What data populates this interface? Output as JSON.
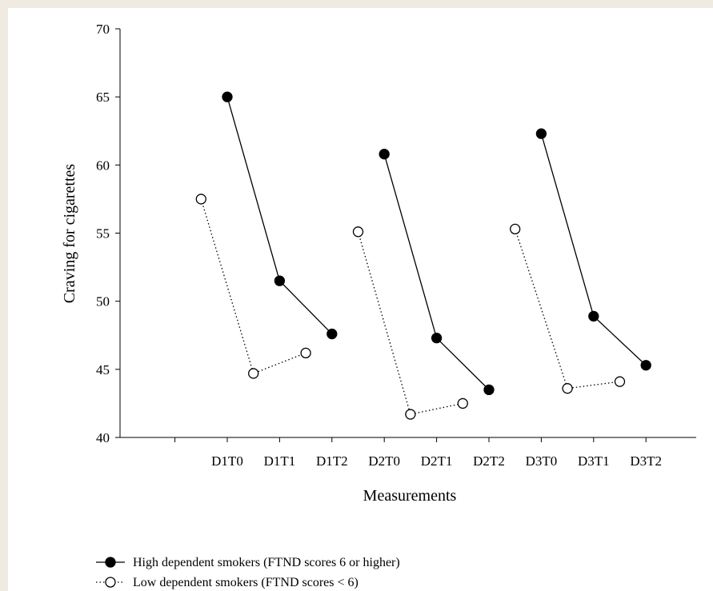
{
  "chart_data": {
    "type": "line",
    "xlabel": "Measurements",
    "ylabel": "Craving for cigarettes",
    "ylim": [
      40,
      70
    ],
    "yticks": [
      40,
      45,
      50,
      55,
      60,
      65,
      70
    ],
    "categories": [
      "D1T0",
      "D1T1",
      "D1T2",
      "D2T0",
      "D2T1",
      "D2T2",
      "D3T0",
      "D3T1",
      "D3T2"
    ],
    "groups": [
      [
        "D1T0",
        "D1T1",
        "D1T2"
      ],
      [
        "D2T0",
        "D2T1",
        "D2T2"
      ],
      [
        "D3T0",
        "D3T1",
        "D3T2"
      ]
    ],
    "grid": false,
    "legend_position": "bottom-left",
    "series": [
      {
        "name": "High dependent smokers (FTND scores 6 or higher)",
        "marker": "filled-circle",
        "line": "solid",
        "color": "#000000",
        "values": [
          65.0,
          51.5,
          47.6,
          60.8,
          47.3,
          43.5,
          62.3,
          48.9,
          45.3
        ]
      },
      {
        "name": "Low dependent smokers (FTND scores < 6)",
        "marker": "open-circle",
        "line": "dotted",
        "color": "#000000",
        "values": [
          57.5,
          44.7,
          46.2,
          55.1,
          41.7,
          42.5,
          55.3,
          43.6,
          44.1
        ]
      }
    ]
  }
}
